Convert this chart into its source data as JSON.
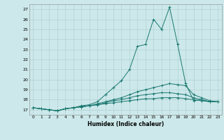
{
  "xlabel": "Humidex (Indice chaleur)",
  "background_color": "#cce8ea",
  "grid_color": "#aaccce",
  "line_color": "#1a7870",
  "xlim": [
    -0.5,
    23.5
  ],
  "ylim": [
    16.5,
    27.5
  ],
  "yticks": [
    17,
    18,
    19,
    20,
    21,
    22,
    23,
    24,
    25,
    26,
    27
  ],
  "xticks": [
    0,
    1,
    2,
    3,
    4,
    5,
    6,
    7,
    8,
    9,
    10,
    11,
    12,
    13,
    14,
    15,
    16,
    17,
    18,
    19,
    20,
    21,
    22,
    23
  ],
  "series": [
    [
      17.2,
      17.1,
      17.0,
      16.9,
      17.1,
      17.2,
      17.4,
      17.5,
      17.8,
      18.5,
      19.2,
      19.9,
      21.0,
      23.3,
      23.5,
      26.0,
      25.0,
      27.2,
      23.5,
      19.6,
      17.9,
      18.0,
      17.8,
      17.8
    ],
    [
      17.2,
      17.1,
      17.0,
      16.9,
      17.1,
      17.2,
      17.3,
      17.4,
      17.6,
      17.8,
      18.0,
      18.2,
      18.5,
      18.8,
      19.0,
      19.2,
      19.4,
      19.6,
      19.5,
      19.4,
      18.5,
      18.2,
      17.9,
      17.8
    ],
    [
      17.2,
      17.1,
      17.0,
      16.9,
      17.1,
      17.2,
      17.3,
      17.4,
      17.5,
      17.7,
      17.9,
      18.0,
      18.2,
      18.4,
      18.5,
      18.6,
      18.7,
      18.7,
      18.6,
      18.5,
      18.2,
      18.0,
      17.8,
      17.8
    ],
    [
      17.2,
      17.1,
      17.0,
      16.9,
      17.1,
      17.2,
      17.3,
      17.4,
      17.5,
      17.6,
      17.7,
      17.8,
      17.9,
      18.0,
      18.1,
      18.1,
      18.2,
      18.2,
      18.2,
      18.1,
      18.0,
      17.9,
      17.8,
      17.8
    ]
  ]
}
